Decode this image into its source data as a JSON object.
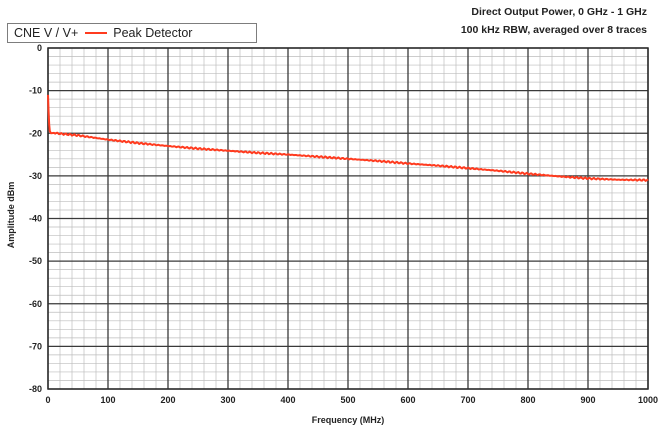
{
  "chart_data": {
    "type": "line",
    "title": "Direct Output Power, 0 GHz - 1 GHz",
    "subtitle": "100 kHz RBW, averaged over 8 traces",
    "xlabel": "Frequency (MHz)",
    "ylabel": "Amplitude dBm",
    "xlim": [
      0,
      1000
    ],
    "ylim": [
      -80,
      0
    ],
    "x_ticks": [
      "0",
      "100",
      "200",
      "300",
      "400",
      "500",
      "600",
      "700",
      "800",
      "900",
      "1000"
    ],
    "y_ticks": [
      "0",
      "-10",
      "-20",
      "-30",
      "-40",
      "-50",
      "-60",
      "-70",
      "-80"
    ],
    "grid": true,
    "legend": {
      "title": "CNE V / V+",
      "position": "top-left"
    },
    "colors": {
      "series": "#ff3b1f",
      "grid_major": "#3a3a3a",
      "grid_minor": "#bdbdbd"
    },
    "series": [
      {
        "name": "Peak Detector",
        "x": [
          0,
          1,
          2,
          3,
          5,
          10,
          20,
          50,
          100,
          150,
          200,
          250,
          300,
          350,
          400,
          450,
          500,
          550,
          600,
          650,
          700,
          750,
          800,
          850,
          900,
          950,
          1000
        ],
        "y": [
          -11,
          -15,
          -18,
          -19.5,
          -20,
          -19.9,
          -20.1,
          -20.5,
          -21.5,
          -22.3,
          -23.0,
          -23.6,
          -24.1,
          -24.6,
          -25.0,
          -25.5,
          -26.0,
          -26.5,
          -27.1,
          -27.6,
          -28.2,
          -28.8,
          -29.5,
          -30.1,
          -30.6,
          -30.9,
          -31.0
        ]
      }
    ]
  }
}
